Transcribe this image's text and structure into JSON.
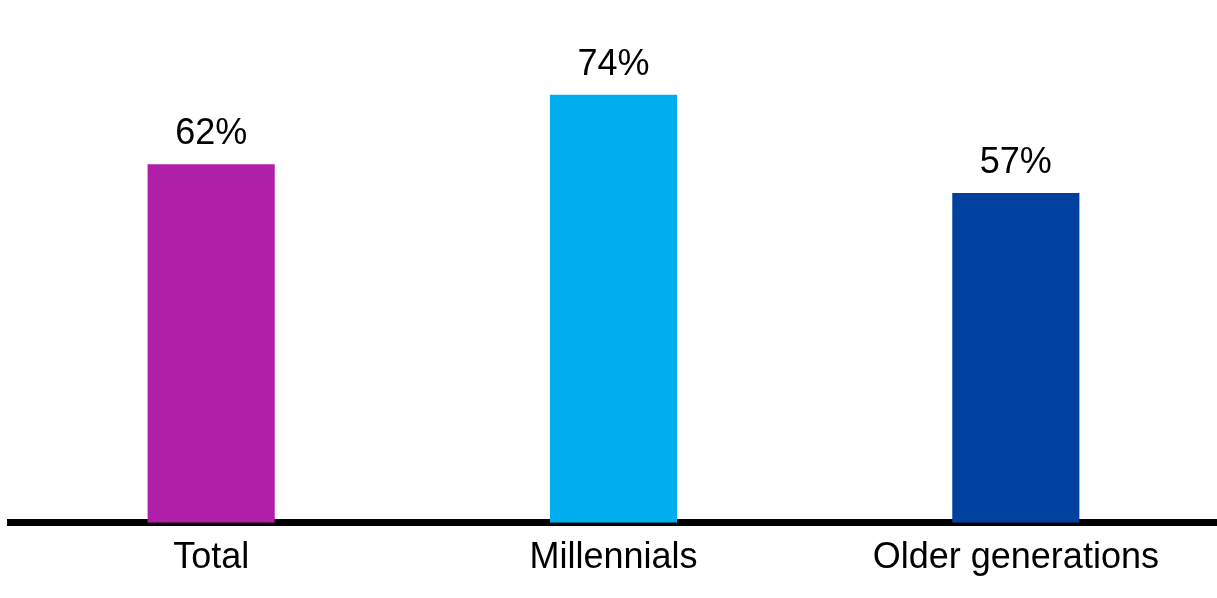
{
  "chart_data": {
    "type": "bar",
    "categories": [
      "Total",
      "Millennials",
      "Older generations"
    ],
    "values": [
      62,
      74,
      57
    ],
    "colors": [
      "#b01fa8",
      "#00aeef",
      "#0041a0"
    ],
    "value_labels": [
      "62%",
      "74%",
      "57%"
    ]
  }
}
